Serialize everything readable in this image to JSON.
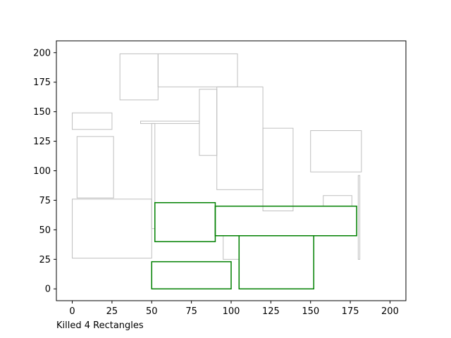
{
  "chart_data": {
    "type": "rectangles",
    "caption": "Killed 4 Rectangles",
    "xlim": [
      -10,
      210
    ],
    "ylim": [
      -10,
      210
    ],
    "xticks": [
      0,
      25,
      50,
      75,
      100,
      125,
      150,
      175,
      200
    ],
    "yticks": [
      0,
      25,
      50,
      75,
      100,
      125,
      150,
      175,
      200
    ],
    "grid": false,
    "legend": "none",
    "colors": {
      "killed": "#008000",
      "other": "#bfbfbf",
      "axes": "#000000"
    },
    "series": [
      {
        "rectangles": [
          {
            "x0": 30,
            "y0": 160,
            "x1": 54,
            "y1": 199
          },
          {
            "x0": 54,
            "y0": 171,
            "x1": 104,
            "y1": 199
          },
          {
            "x0": 0,
            "y0": 135,
            "x1": 25,
            "y1": 149
          },
          {
            "x0": 43,
            "y0": 140,
            "x1": 80,
            "y1": 142
          },
          {
            "x0": 50,
            "y0": 51,
            "x1": 52,
            "y1": 140
          },
          {
            "x0": 80,
            "y0": 113,
            "x1": 91,
            "y1": 169
          },
          {
            "x0": 91,
            "y0": 84,
            "x1": 120,
            "y1": 171
          },
          {
            "x0": 120,
            "y0": 66,
            "x1": 139,
            "y1": 136
          },
          {
            "x0": 150,
            "y0": 99,
            "x1": 182,
            "y1": 134
          },
          {
            "x0": 3,
            "y0": 77,
            "x1": 26,
            "y1": 129
          },
          {
            "x0": 0,
            "y0": 26,
            "x1": 50,
            "y1": 76
          },
          {
            "x0": 158,
            "y0": 70,
            "x1": 176,
            "y1": 79
          },
          {
            "x0": 180,
            "y0": 25,
            "x1": 181,
            "y1": 96
          },
          {
            "x0": 95,
            "y0": 25,
            "x1": 105,
            "y1": 45
          }
        ]
      },
      {
        "rectangles": [
          {
            "x0": 52,
            "y0": 40,
            "x1": 90,
            "y1": 73
          },
          {
            "x0": 90,
            "y0": 45,
            "x1": 179,
            "y1": 70
          },
          {
            "x0": 105,
            "y0": 0,
            "x1": 152,
            "y1": 45
          },
          {
            "x0": 50,
            "y0": 0,
            "x1": 100,
            "y1": 23
          }
        ]
      }
    ]
  }
}
